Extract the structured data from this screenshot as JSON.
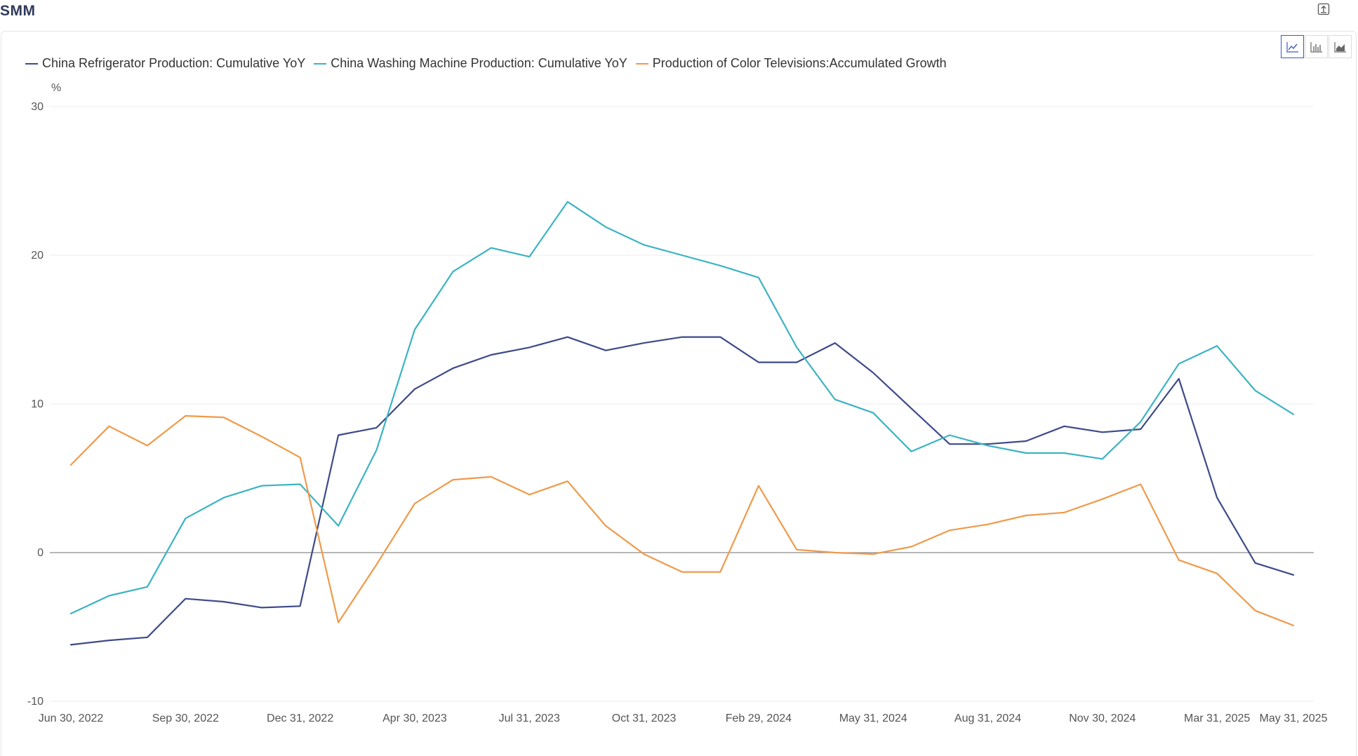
{
  "brand": "SMM",
  "toolbar": {
    "export_icon": "export-icon",
    "chart_types": [
      {
        "icon": "line-chart-icon",
        "active": true
      },
      {
        "icon": "bar-chart-icon",
        "active": false
      },
      {
        "icon": "area-chart-icon",
        "active": false
      }
    ]
  },
  "chart_data": {
    "type": "line",
    "ylabel": "%",
    "ylim": [
      -10,
      30
    ],
    "yticks": [
      30,
      20,
      10,
      0,
      -10
    ],
    "grid": true,
    "legend_placement": "top-left",
    "x": [
      "2022-06-30",
      "2022-07-31",
      "2022-08-31",
      "2022-09-30",
      "2022-10-31",
      "2022-11-30",
      "2022-12-31",
      "2023-02-28",
      "2023-03-31",
      "2023-04-30",
      "2023-05-31",
      "2023-06-30",
      "2023-07-31",
      "2023-08-31",
      "2023-09-30",
      "2023-10-31",
      "2023-11-30",
      "2023-12-31",
      "2024-02-29",
      "2024-03-31",
      "2024-04-30",
      "2024-05-31",
      "2024-06-30",
      "2024-07-31",
      "2024-08-31",
      "2024-09-30",
      "2024-10-31",
      "2024-11-30",
      "2024-12-31",
      "2025-02-28",
      "2025-03-31",
      "2025-04-30",
      "2025-05-31"
    ],
    "xtick_labels": [
      {
        "index": 0,
        "label": "Jun 30, 2022"
      },
      {
        "index": 3,
        "label": "Sep 30, 2022"
      },
      {
        "index": 6,
        "label": "Dec 31, 2022"
      },
      {
        "index": 9,
        "label": "Apr 30, 2023"
      },
      {
        "index": 12,
        "label": "Jul 31, 2023"
      },
      {
        "index": 15,
        "label": "Oct 31, 2023"
      },
      {
        "index": 18,
        "label": "Feb 29, 2024"
      },
      {
        "index": 21,
        "label": "May 31, 2024"
      },
      {
        "index": 24,
        "label": "Aug 31, 2024"
      },
      {
        "index": 27,
        "label": "Nov 30, 2024"
      },
      {
        "index": 30,
        "label": "Mar 31, 2025"
      },
      {
        "index": 32,
        "label": "May 31, 2025"
      }
    ],
    "series": [
      {
        "name": "China Refrigerator Production: Cumulative YoY",
        "color": "#3d4a8a",
        "values": [
          -6.2,
          -5.9,
          -5.7,
          -3.1,
          -3.3,
          -3.7,
          -3.6,
          7.9,
          8.4,
          11.0,
          12.4,
          13.3,
          13.8,
          14.5,
          13.6,
          14.1,
          14.5,
          14.5,
          12.8,
          12.8,
          14.1,
          12.1,
          9.7,
          7.3,
          7.3,
          7.5,
          8.5,
          8.1,
          8.3,
          11.7,
          3.7,
          -0.7,
          -1.5
        ]
      },
      {
        "name": "China Washing Machine Production: Cumulative YoY",
        "color": "#3bb3c3",
        "values": [
          -4.1,
          -2.9,
          -2.3,
          2.3,
          3.7,
          4.5,
          4.6,
          1.8,
          6.9,
          15.0,
          18.9,
          20.5,
          19.9,
          23.6,
          21.9,
          20.7,
          20.0,
          19.3,
          18.5,
          13.8,
          10.3,
          9.4,
          6.8,
          7.9,
          7.2,
          6.7,
          6.7,
          6.3,
          8.8,
          12.7,
          13.9,
          10.9,
          9.3
        ]
      },
      {
        "name": "Production of Color Televisions:Accumulated Growth",
        "color": "#ef9a4a",
        "values": [
          5.9,
          8.5,
          7.2,
          9.2,
          9.1,
          7.8,
          6.4,
          -4.7,
          -0.8,
          3.3,
          4.9,
          5.1,
          3.9,
          4.8,
          1.8,
          -0.1,
          -1.3,
          -1.3,
          4.5,
          0.2,
          0.0,
          -0.1,
          0.4,
          1.5,
          1.9,
          2.5,
          2.7,
          3.6,
          4.6,
          -0.5,
          -1.4,
          -3.9,
          -4.9
        ]
      }
    ]
  }
}
